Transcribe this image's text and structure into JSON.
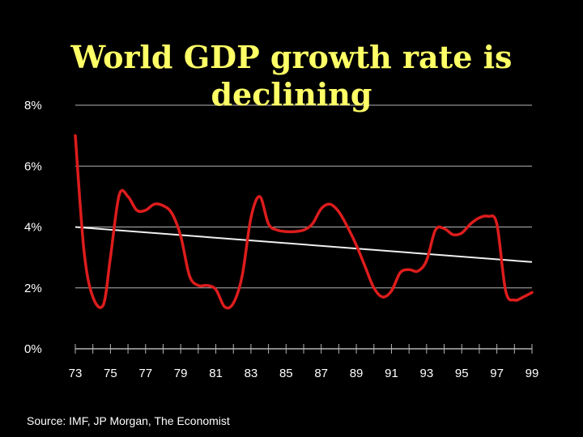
{
  "chart_data": {
    "type": "line",
    "title_lines": [
      "World GDP growth rate is",
      "declining"
    ],
    "source": "Source: IMF, JP Morgan, The Economist",
    "ylim": [
      0,
      8
    ],
    "xlim": [
      73,
      99
    ],
    "y_ticks": [
      {
        "value": 8,
        "label": "8%"
      },
      {
        "value": 6,
        "label": "6%"
      },
      {
        "value": 4,
        "label": "4%"
      },
      {
        "value": 2,
        "label": "2%"
      },
      {
        "value": 0,
        "label": "0%"
      }
    ],
    "x_tick_labels": [
      "73",
      "75",
      "77",
      "79",
      "81",
      "83",
      "85",
      "87",
      "89",
      "91",
      "93",
      "95",
      "97",
      "99"
    ],
    "grid": true,
    "colors": {
      "series": "#dd1c1c",
      "trend": "#f0f0f0",
      "grid": "#b4b4b4",
      "text": "#ffffff",
      "title": "#ffff66"
    },
    "series": [
      {
        "x": [
          73,
          73.5,
          74,
          74.6,
          75,
          75.5,
          76,
          76.5,
          77,
          77.5,
          78,
          78.5,
          79,
          79.5,
          80,
          80.5,
          81,
          81.5,
          82,
          82.5,
          83,
          83.5,
          84,
          84.5,
          85,
          85.5,
          86,
          86.5,
          87,
          87.5,
          88,
          88.5,
          89,
          89.5,
          90,
          90.5,
          91,
          91.5,
          92,
          92.5,
          93,
          93.5,
          94,
          94.5,
          95,
          95.5,
          96,
          96.5,
          97,
          97.5,
          98,
          98.5,
          99
        ],
        "values": [
          7.0,
          3.2,
          1.7,
          1.45,
          3.0,
          5.05,
          5.0,
          4.55,
          4.55,
          4.75,
          4.7,
          4.45,
          3.7,
          2.4,
          2.08,
          2.08,
          1.95,
          1.38,
          1.5,
          2.4,
          4.3,
          5.0,
          4.1,
          3.9,
          3.85,
          3.85,
          3.9,
          4.1,
          4.6,
          4.75,
          4.5,
          4.0,
          3.4,
          2.7,
          2.0,
          1.7,
          1.9,
          2.5,
          2.6,
          2.55,
          2.9,
          3.9,
          3.95,
          3.75,
          3.8,
          4.1,
          4.3,
          4.35,
          4.1,
          1.9,
          1.6,
          1.7,
          1.85
        ]
      }
    ],
    "trend": {
      "x": [
        73,
        99
      ],
      "values": [
        4.0,
        2.85
      ]
    }
  }
}
